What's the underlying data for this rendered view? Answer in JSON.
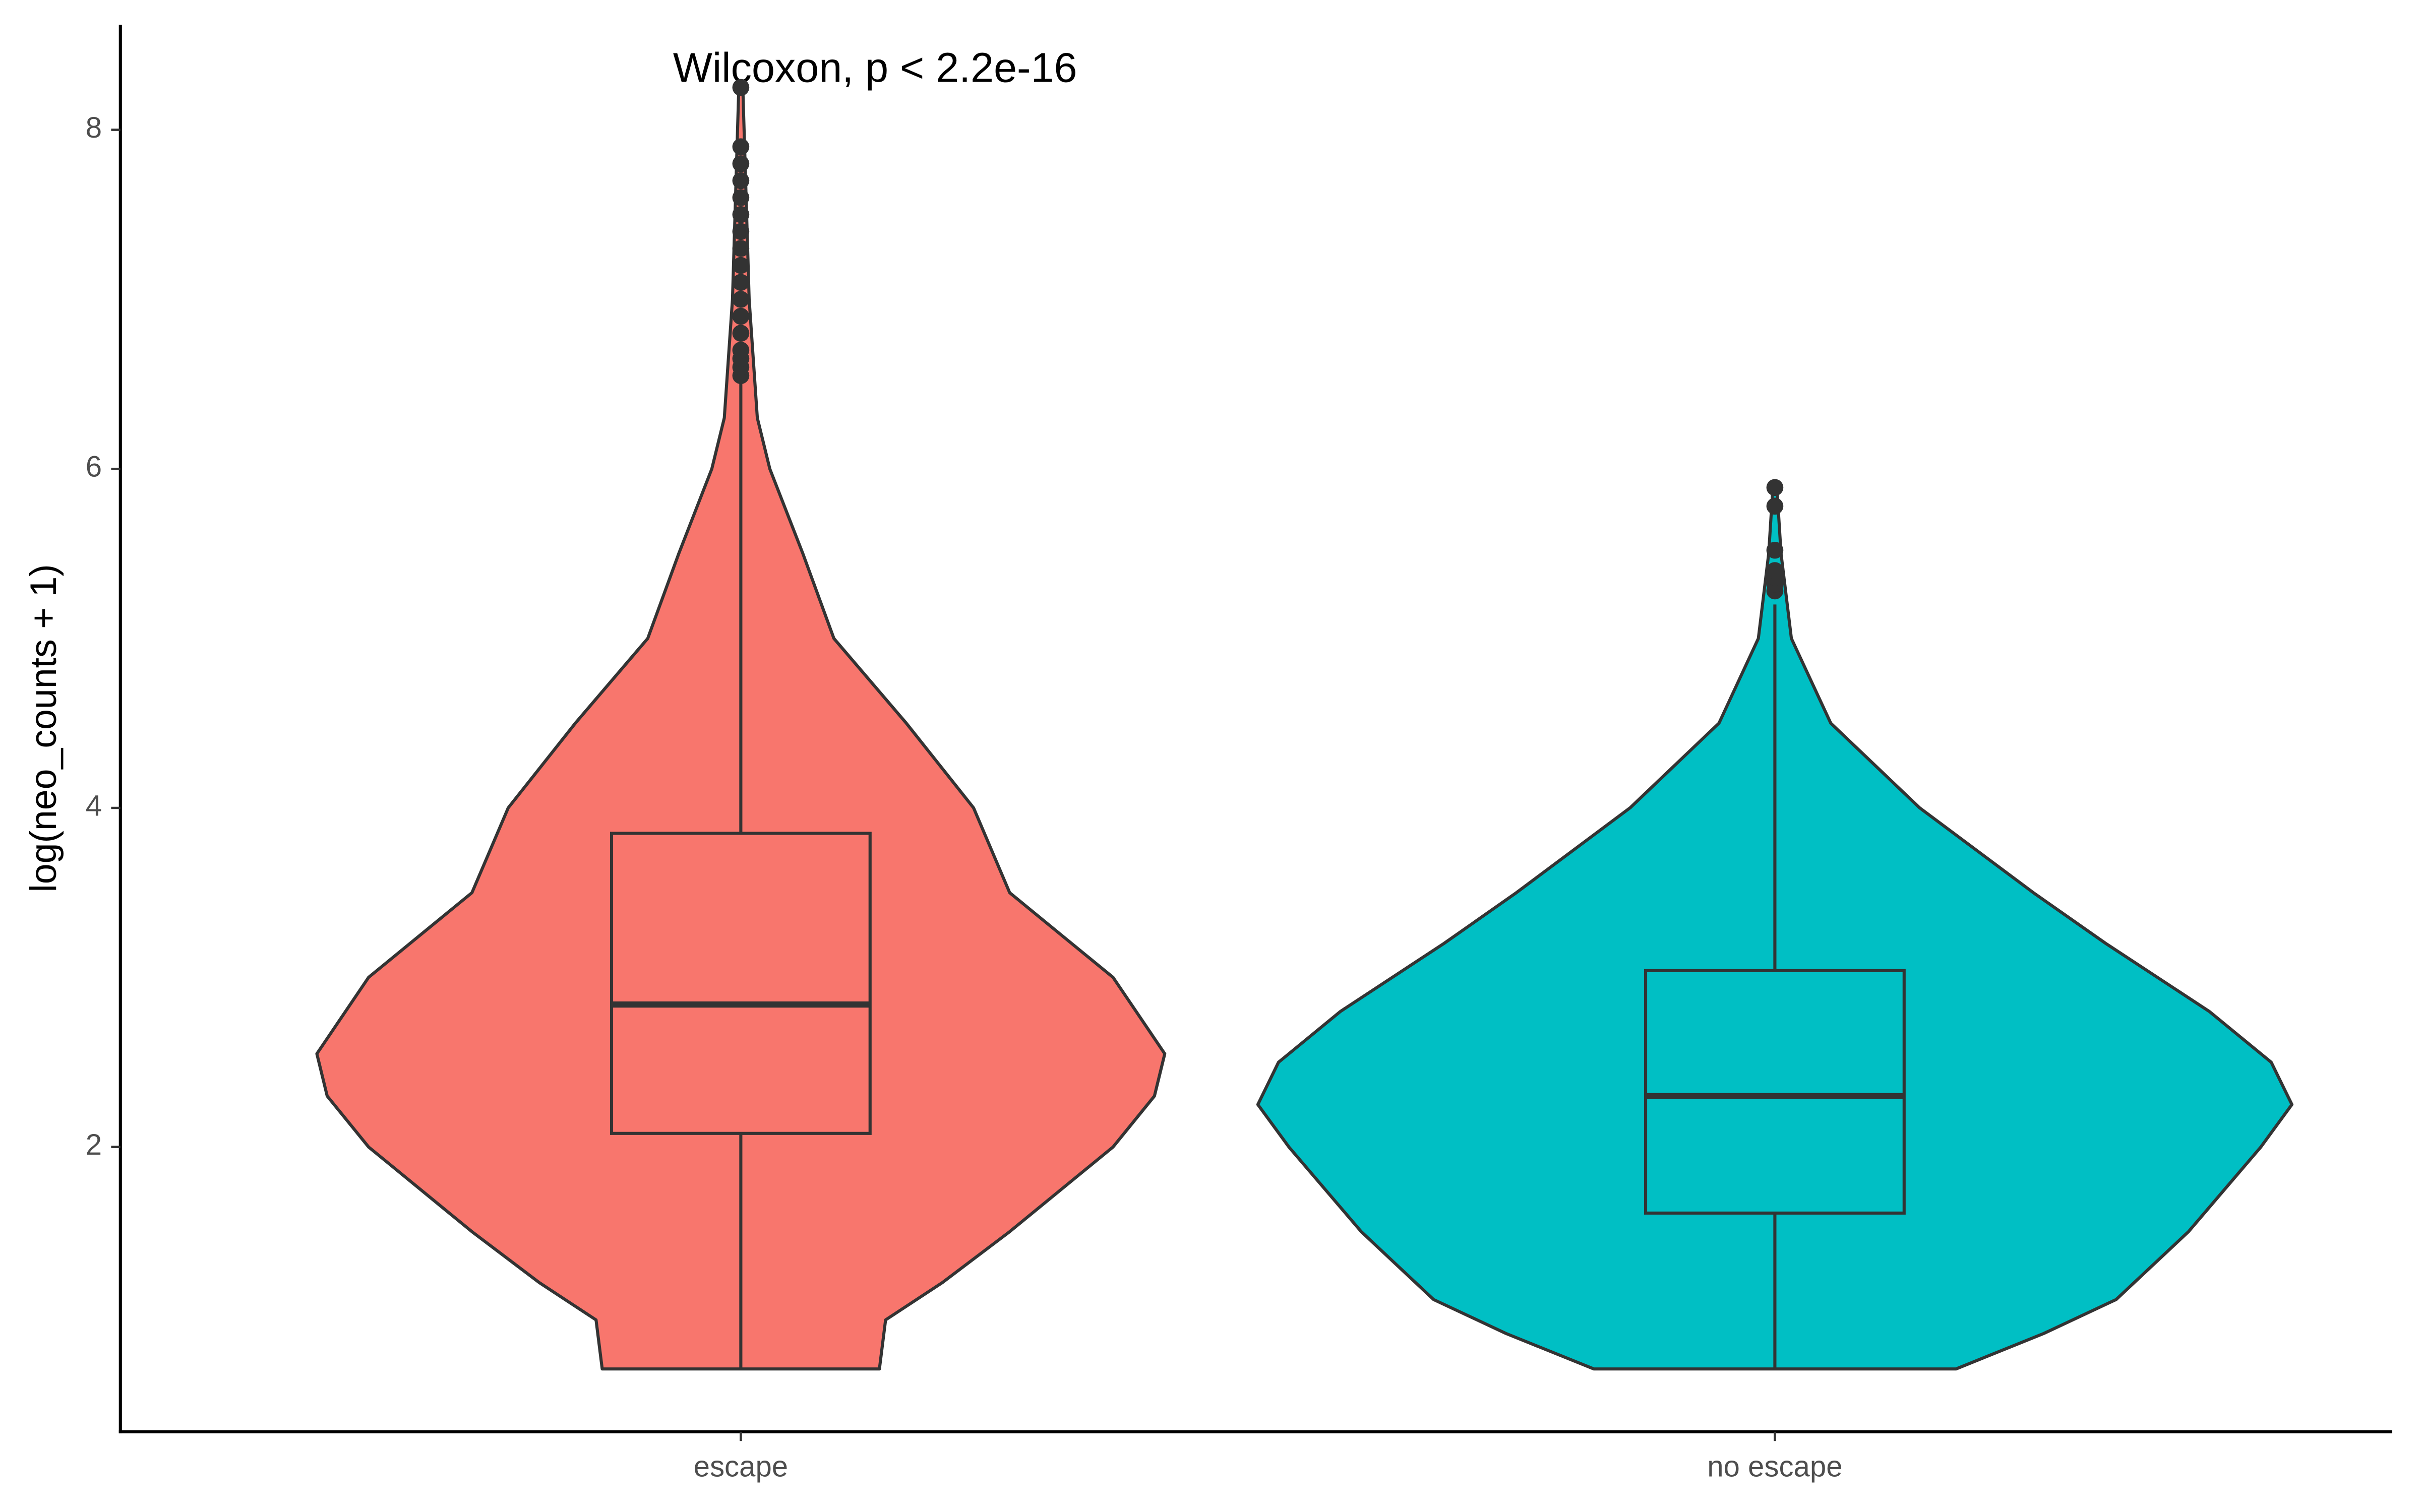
{
  "chart_data": {
    "type": "violin",
    "y_label": "log(neo_counts + 1)",
    "annotation": "Wilcoxon, p < 2.2e-16",
    "categories": [
      "escape",
      "no escape"
    ],
    "ylim": [
      0.32,
      8.62
    ],
    "yticks": [
      2,
      4,
      6,
      8
    ],
    "grid": false,
    "series": [
      {
        "name": "escape",
        "color": "#F8766D",
        "violin": {
          "y": [
            0.69,
            0.98,
            1.2,
            1.5,
            2.0,
            2.3,
            2.55,
            3.0,
            3.5,
            4.0,
            4.5,
            5.0,
            5.5,
            6.0,
            6.3,
            7.0,
            8.25
          ],
          "width": [
            0.134,
            0.14,
            0.195,
            0.26,
            0.36,
            0.4,
            0.41,
            0.36,
            0.26,
            0.225,
            0.16,
            0.09,
            0.06,
            0.028,
            0.016,
            0.008,
            0.002
          ]
        },
        "box": {
          "min": 0.69,
          "q1": 2.08,
          "median": 2.84,
          "q3": 3.85,
          "max": 6.53
        },
        "outliers": [
          6.55,
          6.6,
          6.65,
          6.7,
          6.8,
          6.9,
          7.0,
          7.1,
          7.2,
          7.3,
          7.4,
          7.5,
          7.6,
          7.7,
          7.8,
          7.9,
          8.25
        ]
      },
      {
        "name": "no escape",
        "color": "#00BFC4",
        "violin": {
          "y": [
            0.69,
            0.9,
            1.1,
            1.5,
            2.0,
            2.25,
            2.5,
            2.8,
            3.2,
            3.5,
            4.0,
            4.5,
            5.0,
            5.5,
            5.89
          ],
          "width": [
            0.175,
            0.26,
            0.33,
            0.4,
            0.47,
            0.5,
            0.48,
            0.42,
            0.32,
            0.25,
            0.14,
            0.054,
            0.016,
            0.006,
            0.002
          ]
        },
        "box": {
          "min": 0.69,
          "q1": 1.61,
          "median": 2.3,
          "q3": 3.04,
          "max": 5.2
        },
        "outliers": [
          5.28,
          5.32,
          5.36,
          5.4,
          5.52,
          5.78,
          5.89
        ]
      }
    ]
  }
}
